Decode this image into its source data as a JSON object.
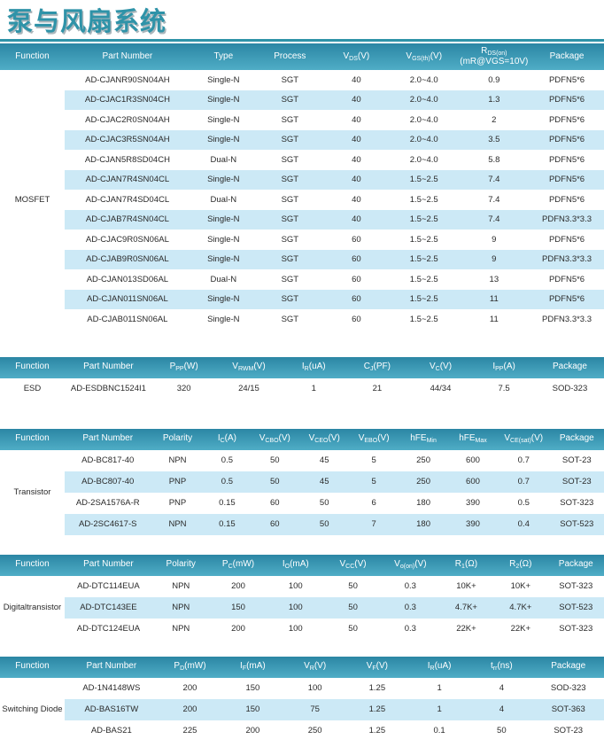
{
  "page_title": "泵与风扇系统",
  "colors": {
    "accent": "#2f93a8",
    "table_header_gradient_top": "#2b86a4",
    "table_header_gradient_bottom": "#4fadc6",
    "row_stripe": "#cce9f6",
    "body_text": "#2a2a2a",
    "header_text": "#ffffff"
  },
  "tables": [
    {
      "function_label": "MOSFET",
      "columns": [
        "Function",
        "Part Number",
        "Type",
        "Process",
        "V_{DS}(V)",
        "V_{GS(th)}(V)",
        "R_{DS(on)}\n(mR@VGS=10V)",
        "Package"
      ],
      "col_widths_pct": [
        10.7,
        20.8,
        11.0,
        11.0,
        11.0,
        11.4,
        11.8,
        12.3
      ],
      "rows": [
        [
          "AD-CJANR90SN04AH",
          "Single-N",
          "SGT",
          "40",
          "2.0~4.0",
          "0.9",
          "PDFN5*6"
        ],
        [
          "AD-CJAC1R3SN04CH",
          "Single-N",
          "SGT",
          "40",
          "2.0~4.0",
          "1.3",
          "PDFN5*6"
        ],
        [
          "AD-CJAC2R0SN04AH",
          "Single-N",
          "SGT",
          "40",
          "2.0~4.0",
          "2",
          "PDFN5*6"
        ],
        [
          "AD-CJAC3R5SN04AH",
          "Single-N",
          "SGT",
          "40",
          "2.0~4.0",
          "3.5",
          "PDFN5*6"
        ],
        [
          "AD-CJAN5R8SD04CH",
          "Dual-N",
          "SGT",
          "40",
          "2.0~4.0",
          "5.8",
          "PDFN5*6"
        ],
        [
          "AD-CJAN7R4SN04CL",
          "Single-N",
          "SGT",
          "40",
          "1.5~2.5",
          "7.4",
          "PDFN5*6"
        ],
        [
          "AD-CJAN7R4SD04CL",
          "Dual-N",
          "SGT",
          "40",
          "1.5~2.5",
          "7.4",
          "PDFN5*6"
        ],
        [
          "AD-CJAB7R4SN04CL",
          "Single-N",
          "SGT",
          "40",
          "1.5~2.5",
          "7.4",
          "PDFN3.3*3.3"
        ],
        [
          "AD-CJAC9R0SN06AL",
          "Single-N",
          "SGT",
          "60",
          "1.5~2.5",
          "9",
          "PDFN5*6"
        ],
        [
          "AD-CJAB9R0SN06AL",
          "Single-N",
          "SGT",
          "60",
          "1.5~2.5",
          "9",
          "PDFN3.3*3.3"
        ],
        [
          "AD-CJAN013SD06AL",
          "Dual-N",
          "SGT",
          "60",
          "1.5~2.5",
          "13",
          "PDFN5*6"
        ],
        [
          "AD-CJAN011SN06AL",
          "Single-N",
          "SGT",
          "60",
          "1.5~2.5",
          "11",
          "PDFN5*6"
        ],
        [
          "AD-CJAB011SN06AL",
          "Single-N",
          "SGT",
          "60",
          "1.5~2.5",
          "11",
          "PDFN3.3*3.3"
        ]
      ]
    },
    {
      "function_label": "ESD",
      "columns": [
        "Function",
        "Part Number",
        "P_{PP}(W)",
        "V_{RWM}(V)",
        "I_{R}(uA)",
        "C_{J}(PF)",
        "V_{C}(V)",
        "I_{PP}(A)",
        "Package"
      ],
      "col_widths_pct": [
        10.7,
        14.5,
        10.5,
        11.0,
        10.5,
        10.5,
        10.5,
        10.5,
        11.3
      ],
      "rows": [
        [
          "AD-ESDBNC1524I1",
          "320",
          "24/15",
          "1",
          "21",
          "44/34",
          "7.5",
          "SOD-323"
        ]
      ]
    },
    {
      "function_label": "Transistor",
      "columns": [
        "Function",
        "Part Number",
        "Polarity",
        "I_{C}(A)",
        "V_{CBO}(V)",
        "V_{CEO}(V)",
        "V_{EBO}(V)",
        "hFE_{Min}",
        "hFE_{Max}",
        "V_{CE(sat)}(V)",
        "Package"
      ],
      "col_widths_pct": [
        10.7,
        14.3,
        8.8,
        7.6,
        8.2,
        8.2,
        8.2,
        8.2,
        8.2,
        8.6,
        9.0
      ],
      "rows": [
        [
          "AD-BC817-40",
          "NPN",
          "0.5",
          "50",
          "45",
          "5",
          "250",
          "600",
          "0.7",
          "SOT-23"
        ],
        [
          "AD-BC807-40",
          "PNP",
          "0.5",
          "50",
          "45",
          "5",
          "250",
          "600",
          "0.7",
          "SOT-23"
        ],
        [
          "AD-2SA1576A-R",
          "PNP",
          "0.15",
          "60",
          "50",
          "6",
          "180",
          "390",
          "0.5",
          "SOT-323"
        ],
        [
          "AD-2SC4617-S",
          "NPN",
          "0.15",
          "60",
          "50",
          "7",
          "180",
          "390",
          "0.4",
          "SOT-523"
        ]
      ]
    },
    {
      "function_label": "Digitaltransistor",
      "columns": [
        "Function",
        "Part Number",
        "Polarity",
        "P_{C}(mW)",
        "I_{O}(mA)",
        "V_{CC}(V)",
        "V_{o(on)}(V)",
        "R_{1}(Ω)",
        "R_{2}(Ω)",
        "Package"
      ],
      "col_widths_pct": [
        10.7,
        14.5,
        9.5,
        9.5,
        9.5,
        9.5,
        9.5,
        9.0,
        9.0,
        9.3
      ],
      "rows": [
        [
          "AD-DTC114EUA",
          "NPN",
          "200",
          "100",
          "50",
          "0.3",
          "10K+",
          "10K+",
          "SOT-323"
        ],
        [
          "AD-DTC143EE",
          "NPN",
          "150",
          "100",
          "50",
          "0.3",
          "4.7K+",
          "4.7K+",
          "SOT-523"
        ],
        [
          "AD-DTC124EUA",
          "NPN",
          "200",
          "100",
          "50",
          "0.3",
          "22K+",
          "22K+",
          "SOT-323"
        ]
      ]
    },
    {
      "function_label": "Switching Diode",
      "columns": [
        "Function",
        "Part Number",
        "P_{D}(mW)",
        "I_{F}(mA)",
        "V_{R}(V)",
        "V_{F}(V)",
        "I_{R}(uA)",
        "t_{rr}(ns)",
        "Package"
      ],
      "col_widths_pct": [
        10.7,
        15.5,
        10.5,
        10.3,
        10.3,
        10.3,
        10.3,
        10.3,
        11.8
      ],
      "rows": [
        [
          "AD-1N4148WS",
          "200",
          "150",
          "100",
          "1.25",
          "1",
          "4",
          "SOD-323"
        ],
        [
          "AD-BAS16TW",
          "200",
          "150",
          "75",
          "1.25",
          "1",
          "4",
          "SOT-363"
        ],
        [
          "AD-BAS21",
          "225",
          "200",
          "250",
          "1.25",
          "0.1",
          "50",
          "SOT-23"
        ]
      ]
    }
  ]
}
